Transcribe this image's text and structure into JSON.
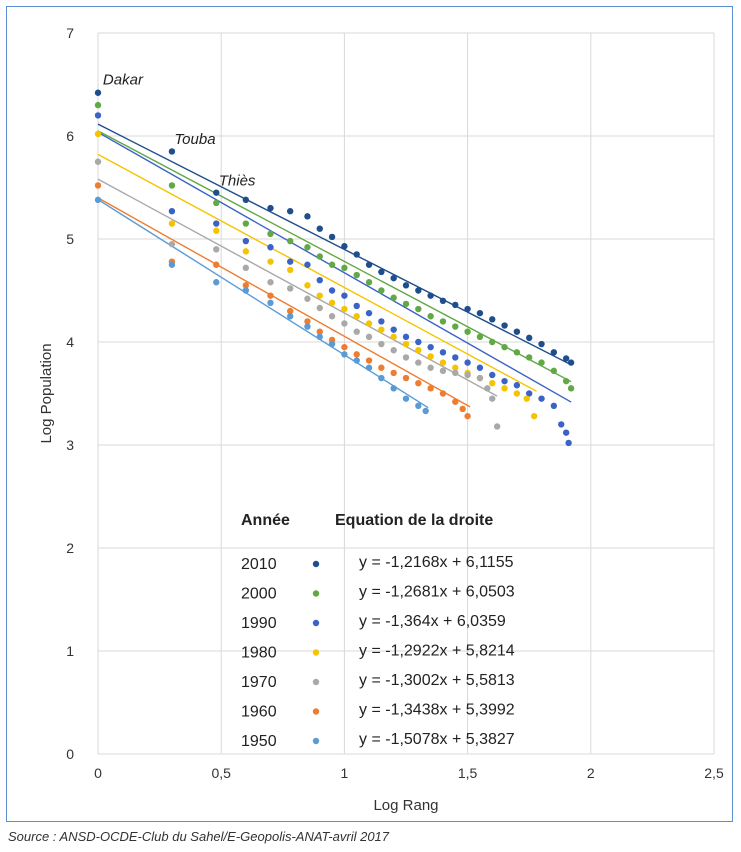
{
  "chart_data": {
    "type": "scatter",
    "xlabel": "Log Rang",
    "ylabel": "Log Population",
    "xlim": [
      0,
      2.5
    ],
    "ylim": [
      0,
      7
    ],
    "xticks": [
      0,
      0.5,
      1,
      1.5,
      2,
      2.5
    ],
    "xtick_labels": [
      "0",
      "0,5",
      "1",
      "1,5",
      "2",
      "2,5"
    ],
    "yticks": [
      0,
      1,
      2,
      3,
      4,
      5,
      6,
      7
    ],
    "ytick_labels": [
      "0",
      "1",
      "2",
      "3",
      "4",
      "5",
      "6",
      "7"
    ],
    "grid": true,
    "legend_position": "bottom-center",
    "legend_header_year": "Année",
    "legend_header_equation": "Equation de la droite",
    "series": [
      {
        "name": "2010",
        "color": "#1f4e8c",
        "slope": -1.2168,
        "intercept": 6.1155,
        "x_max": 1.92,
        "equation": "y = -1,2168x + 6,1155",
        "points": [
          [
            0,
            6.42
          ],
          [
            0.3,
            5.85
          ],
          [
            0.48,
            5.45
          ],
          [
            0.6,
            5.38
          ],
          [
            0.7,
            5.3
          ],
          [
            0.78,
            5.27
          ],
          [
            0.85,
            5.22
          ],
          [
            0.9,
            5.1
          ],
          [
            0.95,
            5.02
          ],
          [
            1.0,
            4.93
          ],
          [
            1.05,
            4.85
          ],
          [
            1.1,
            4.75
          ],
          [
            1.15,
            4.68
          ],
          [
            1.2,
            4.62
          ],
          [
            1.25,
            4.55
          ],
          [
            1.3,
            4.5
          ],
          [
            1.35,
            4.45
          ],
          [
            1.4,
            4.4
          ],
          [
            1.45,
            4.36
          ],
          [
            1.5,
            4.32
          ],
          [
            1.55,
            4.28
          ],
          [
            1.6,
            4.22
          ],
          [
            1.65,
            4.16
          ],
          [
            1.7,
            4.1
          ],
          [
            1.75,
            4.04
          ],
          [
            1.8,
            3.98
          ],
          [
            1.85,
            3.9
          ],
          [
            1.9,
            3.84
          ],
          [
            1.92,
            3.8
          ]
        ]
      },
      {
        "name": "2000",
        "color": "#62a844",
        "slope": -1.2681,
        "intercept": 6.0503,
        "x_max": 1.92,
        "equation": "y = -1,2681x + 6,0503",
        "points": [
          [
            0,
            6.3
          ],
          [
            0.3,
            5.52
          ],
          [
            0.48,
            5.35
          ],
          [
            0.6,
            5.15
          ],
          [
            0.7,
            5.05
          ],
          [
            0.78,
            4.98
          ],
          [
            0.85,
            4.92
          ],
          [
            0.9,
            4.83
          ],
          [
            0.95,
            4.75
          ],
          [
            1.0,
            4.72
          ],
          [
            1.05,
            4.65
          ],
          [
            1.1,
            4.58
          ],
          [
            1.15,
            4.5
          ],
          [
            1.2,
            4.43
          ],
          [
            1.25,
            4.37
          ],
          [
            1.3,
            4.32
          ],
          [
            1.35,
            4.25
          ],
          [
            1.4,
            4.2
          ],
          [
            1.45,
            4.15
          ],
          [
            1.5,
            4.1
          ],
          [
            1.55,
            4.05
          ],
          [
            1.6,
            4.0
          ],
          [
            1.65,
            3.95
          ],
          [
            1.7,
            3.9
          ],
          [
            1.75,
            3.85
          ],
          [
            1.8,
            3.8
          ],
          [
            1.85,
            3.72
          ],
          [
            1.9,
            3.62
          ],
          [
            1.92,
            3.55
          ]
        ]
      },
      {
        "name": "1990",
        "color": "#3a63c5",
        "slope": -1.364,
        "intercept": 6.0359,
        "x_max": 1.92,
        "equation": "y = -1,364x + 6,0359",
        "points": [
          [
            0,
            6.2
          ],
          [
            0.3,
            5.27
          ],
          [
            0.48,
            5.15
          ],
          [
            0.6,
            4.98
          ],
          [
            0.7,
            4.92
          ],
          [
            0.78,
            4.78
          ],
          [
            0.85,
            4.75
          ],
          [
            0.9,
            4.6
          ],
          [
            0.95,
            4.5
          ],
          [
            1.0,
            4.45
          ],
          [
            1.05,
            4.35
          ],
          [
            1.1,
            4.28
          ],
          [
            1.15,
            4.2
          ],
          [
            1.2,
            4.12
          ],
          [
            1.25,
            4.05
          ],
          [
            1.3,
            4.0
          ],
          [
            1.35,
            3.95
          ],
          [
            1.4,
            3.9
          ],
          [
            1.45,
            3.85
          ],
          [
            1.5,
            3.8
          ],
          [
            1.55,
            3.75
          ],
          [
            1.6,
            3.68
          ],
          [
            1.65,
            3.62
          ],
          [
            1.7,
            3.58
          ],
          [
            1.75,
            3.5
          ],
          [
            1.8,
            3.45
          ],
          [
            1.85,
            3.38
          ],
          [
            1.88,
            3.2
          ],
          [
            1.9,
            3.12
          ],
          [
            1.91,
            3.02
          ]
        ]
      },
      {
        "name": "1980",
        "color": "#f5c400",
        "slope": -1.2922,
        "intercept": 5.8214,
        "x_max": 1.78,
        "equation": "y = -1,2922x + 5,8214",
        "points": [
          [
            0,
            6.02
          ],
          [
            0.3,
            5.15
          ],
          [
            0.48,
            5.08
          ],
          [
            0.6,
            4.88
          ],
          [
            0.7,
            4.78
          ],
          [
            0.78,
            4.7
          ],
          [
            0.85,
            4.55
          ],
          [
            0.9,
            4.45
          ],
          [
            0.95,
            4.38
          ],
          [
            1.0,
            4.32
          ],
          [
            1.05,
            4.25
          ],
          [
            1.1,
            4.18
          ],
          [
            1.15,
            4.12
          ],
          [
            1.2,
            4.05
          ],
          [
            1.25,
            3.98
          ],
          [
            1.3,
            3.92
          ],
          [
            1.35,
            3.86
          ],
          [
            1.4,
            3.8
          ],
          [
            1.45,
            3.75
          ],
          [
            1.5,
            3.7
          ],
          [
            1.55,
            3.65
          ],
          [
            1.6,
            3.6
          ],
          [
            1.65,
            3.55
          ],
          [
            1.7,
            3.5
          ],
          [
            1.74,
            3.45
          ],
          [
            1.77,
            3.28
          ]
        ]
      },
      {
        "name": "1970",
        "color": "#a9a9a9",
        "slope": -1.3002,
        "intercept": 5.5813,
        "x_max": 1.62,
        "equation": "y = -1,3002x + 5,5813",
        "points": [
          [
            0,
            5.75
          ],
          [
            0.3,
            4.95
          ],
          [
            0.48,
            4.9
          ],
          [
            0.6,
            4.72
          ],
          [
            0.7,
            4.58
          ],
          [
            0.78,
            4.52
          ],
          [
            0.85,
            4.42
          ],
          [
            0.9,
            4.33
          ],
          [
            0.95,
            4.25
          ],
          [
            1.0,
            4.18
          ],
          [
            1.05,
            4.1
          ],
          [
            1.1,
            4.05
          ],
          [
            1.15,
            3.98
          ],
          [
            1.2,
            3.92
          ],
          [
            1.25,
            3.85
          ],
          [
            1.3,
            3.8
          ],
          [
            1.35,
            3.75
          ],
          [
            1.4,
            3.72
          ],
          [
            1.45,
            3.7
          ],
          [
            1.5,
            3.68
          ],
          [
            1.55,
            3.65
          ],
          [
            1.58,
            3.55
          ],
          [
            1.6,
            3.45
          ],
          [
            1.62,
            3.18
          ]
        ]
      },
      {
        "name": "1960",
        "color": "#ed7d31",
        "slope": -1.3438,
        "intercept": 5.3992,
        "x_max": 1.51,
        "equation": "y = -1,3438x + 5,3992",
        "points": [
          [
            0,
            5.52
          ],
          [
            0.3,
            4.78
          ],
          [
            0.48,
            4.75
          ],
          [
            0.6,
            4.55
          ],
          [
            0.7,
            4.45
          ],
          [
            0.78,
            4.3
          ],
          [
            0.85,
            4.2
          ],
          [
            0.9,
            4.1
          ],
          [
            0.95,
            4.02
          ],
          [
            1.0,
            3.95
          ],
          [
            1.05,
            3.88
          ],
          [
            1.1,
            3.82
          ],
          [
            1.15,
            3.75
          ],
          [
            1.2,
            3.7
          ],
          [
            1.25,
            3.65
          ],
          [
            1.3,
            3.6
          ],
          [
            1.35,
            3.55
          ],
          [
            1.4,
            3.5
          ],
          [
            1.45,
            3.42
          ],
          [
            1.48,
            3.35
          ],
          [
            1.5,
            3.28
          ]
        ]
      },
      {
        "name": "1950",
        "color": "#5b9bd5",
        "slope": -1.5078,
        "intercept": 5.3827,
        "x_max": 1.34,
        "equation": "y = -1,5078x + 5,3827",
        "points": [
          [
            0,
            5.38
          ],
          [
            0.3,
            4.75
          ],
          [
            0.48,
            4.58
          ],
          [
            0.6,
            4.5
          ],
          [
            0.7,
            4.38
          ],
          [
            0.78,
            4.25
          ],
          [
            0.85,
            4.15
          ],
          [
            0.9,
            4.05
          ],
          [
            0.95,
            3.98
          ],
          [
            1.0,
            3.88
          ],
          [
            1.05,
            3.82
          ],
          [
            1.1,
            3.75
          ],
          [
            1.15,
            3.65
          ],
          [
            1.2,
            3.55
          ],
          [
            1.25,
            3.45
          ],
          [
            1.3,
            3.38
          ],
          [
            1.33,
            3.33
          ]
        ]
      }
    ],
    "annotations": [
      {
        "text": "Dakar",
        "x": 0.02,
        "y": 6.5
      },
      {
        "text": "Touba",
        "x": 0.31,
        "y": 5.92
      },
      {
        "text": "Thiès",
        "x": 0.49,
        "y": 5.52
      }
    ]
  },
  "source": "Source : ANSD-OCDE-Club du Sahel/E-Geopolis-ANAT-avril 2017"
}
